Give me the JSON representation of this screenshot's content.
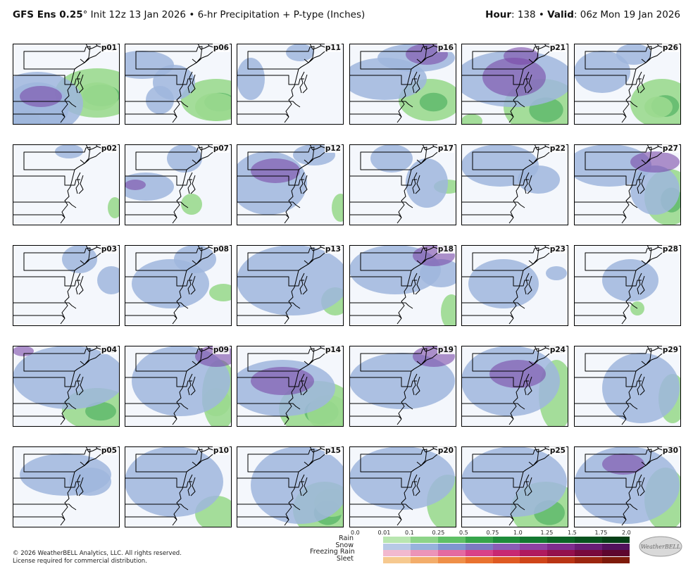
{
  "header": {
    "model": "GFS Ens 0.25",
    "degree": "°",
    "init": "Init 12z 13 Jan 2026",
    "bullet": "•",
    "product": "6-hr Precipitation + P-type (Inches)",
    "hour_label": "Hour",
    "hour_value": ": 138",
    "valid_label": "Valid",
    "valid_value": ": 06z Mon 19 Jan 2026"
  },
  "panels": [
    {
      "label": "p01",
      "blobs": [
        [
          "s",
          -30,
          40,
          130,
          90
        ],
        [
          "s",
          -10,
          55,
          90,
          70
        ],
        [
          "f",
          10,
          60,
          60,
          30
        ],
        [
          "r",
          60,
          35,
          120,
          70
        ],
        [
          "r",
          90,
          55,
          60,
          40
        ],
        [
          "r",
          0,
          95,
          40,
          30
        ]
      ]
    },
    {
      "label": "p06",
      "blobs": [
        [
          "s",
          -20,
          10,
          90,
          40
        ],
        [
          "s",
          40,
          30,
          60,
          50
        ],
        [
          "s",
          30,
          60,
          40,
          40
        ],
        [
          "r",
          80,
          50,
          100,
          60
        ],
        [
          "r",
          100,
          70,
          60,
          40
        ]
      ]
    },
    {
      "label": "p11",
      "blobs": [
        [
          "s",
          0,
          20,
          40,
          60
        ],
        [
          "s",
          70,
          0,
          40,
          25
        ]
      ]
    },
    {
      "label": "p16",
      "blobs": [
        [
          "s",
          -10,
          20,
          120,
          60
        ],
        [
          "s",
          40,
          0,
          110,
          40
        ],
        [
          "f",
          80,
          0,
          60,
          30
        ],
        [
          "r",
          70,
          50,
          90,
          60
        ]
      ]
    },
    {
      "label": "p21",
      "blobs": [
        [
          "s",
          -10,
          10,
          170,
          80
        ],
        [
          "f",
          30,
          20,
          90,
          55
        ],
        [
          "f",
          60,
          5,
          50,
          25
        ],
        [
          "r",
          60,
          50,
          110,
          80
        ],
        [
          "r",
          0,
          100,
          30,
          20
        ]
      ]
    },
    {
      "label": "p26",
      "blobs": [
        [
          "s",
          0,
          10,
          80,
          60
        ],
        [
          "s",
          60,
          0,
          50,
          30
        ],
        [
          "r",
          80,
          50,
          90,
          70
        ],
        [
          "r",
          100,
          75,
          40,
          30
        ]
      ]
    },
    {
      "label": "p02",
      "blobs": [
        [
          "s",
          60,
          0,
          40,
          20
        ],
        [
          "r",
          135,
          75,
          20,
          30
        ]
      ]
    },
    {
      "label": "p07",
      "blobs": [
        [
          "s",
          -10,
          40,
          80,
          40
        ],
        [
          "f",
          0,
          50,
          30,
          15
        ],
        [
          "s",
          60,
          0,
          50,
          40
        ],
        [
          "r",
          80,
          70,
          30,
          30
        ]
      ]
    },
    {
      "label": "p12",
      "blobs": [
        [
          "s",
          -10,
          10,
          110,
          90
        ],
        [
          "f",
          20,
          20,
          70,
          35
        ],
        [
          "s",
          80,
          0,
          60,
          30
        ],
        [
          "r",
          135,
          70,
          25,
          40
        ]
      ]
    },
    {
      "label": "p17",
      "blobs": [
        [
          "s",
          30,
          0,
          60,
          40
        ],
        [
          "s",
          80,
          20,
          60,
          70
        ],
        [
          "r",
          120,
          50,
          40,
          20
        ]
      ]
    },
    {
      "label": "p22",
      "blobs": [
        [
          "s",
          0,
          0,
          110,
          60
        ],
        [
          "s",
          80,
          30,
          60,
          40
        ]
      ]
    },
    {
      "label": "p27",
      "blobs": [
        [
          "s",
          -10,
          0,
          120,
          60
        ],
        [
          "f",
          80,
          10,
          70,
          30
        ],
        [
          "s",
          80,
          30,
          70,
          70
        ],
        [
          "r",
          100,
          35,
          70,
          80
        ]
      ]
    },
    {
      "label": "p03",
      "blobs": [
        [
          "s",
          70,
          0,
          50,
          40
        ],
        [
          "s",
          120,
          30,
          40,
          40
        ]
      ]
    },
    {
      "label": "p08",
      "blobs": [
        [
          "s",
          10,
          20,
          110,
          70
        ],
        [
          "s",
          70,
          0,
          60,
          40
        ],
        [
          "r",
          120,
          55,
          40,
          25
        ]
      ]
    },
    {
      "label": "p13",
      "blobs": [
        [
          "s",
          0,
          0,
          160,
          100
        ],
        [
          "r",
          120,
          60,
          40,
          40
        ]
      ]
    },
    {
      "label": "p18",
      "blobs": [
        [
          "s",
          0,
          0,
          130,
          70
        ],
        [
          "f",
          90,
          0,
          60,
          30
        ],
        [
          "s",
          100,
          20,
          60,
          40
        ],
        [
          "r",
          130,
          70,
          30,
          50
        ]
      ]
    },
    {
      "label": "p23",
      "blobs": [
        [
          "s",
          10,
          20,
          100,
          70
        ],
        [
          "s",
          120,
          30,
          30,
          20
        ]
      ]
    },
    {
      "label": "p28",
      "blobs": [
        [
          "s",
          40,
          20,
          80,
          60
        ],
        [
          "r",
          80,
          80,
          20,
          20
        ]
      ]
    },
    {
      "label": "p04",
      "blobs": [
        [
          "s",
          0,
          0,
          160,
          90
        ],
        [
          "f",
          0,
          0,
          30,
          15
        ],
        [
          "r",
          70,
          60,
          100,
          60
        ]
      ]
    },
    {
      "label": "p09",
      "blobs": [
        [
          "s",
          10,
          0,
          140,
          100
        ],
        [
          "f",
          100,
          0,
          60,
          30
        ],
        [
          "r",
          110,
          20,
          50,
          100
        ],
        [
          "r",
          110,
          60,
          40,
          40
        ]
      ]
    },
    {
      "label": "p14",
      "blobs": [
        [
          "s",
          -10,
          20,
          150,
          80
        ],
        [
          "f",
          20,
          30,
          90,
          40
        ],
        [
          "r",
          60,
          50,
          110,
          80
        ],
        [
          "r",
          100,
          70,
          60,
          50
        ]
      ]
    },
    {
      "label": "p19",
      "blobs": [
        [
          "s",
          0,
          10,
          150,
          80
        ],
        [
          "f",
          90,
          0,
          60,
          30
        ]
      ]
    },
    {
      "label": "p24",
      "blobs": [
        [
          "s",
          0,
          0,
          140,
          100
        ],
        [
          "f",
          40,
          20,
          80,
          40
        ],
        [
          "r",
          110,
          20,
          50,
          100
        ]
      ]
    },
    {
      "label": "p29",
      "blobs": [
        [
          "s",
          40,
          10,
          110,
          100
        ],
        [
          "r",
          120,
          40,
          40,
          70
        ]
      ]
    },
    {
      "label": "p05",
      "blobs": [
        [
          "s",
          10,
          10,
          130,
          60
        ],
        [
          "s",
          80,
          30,
          60,
          40
        ]
      ]
    },
    {
      "label": "p10",
      "blobs": [
        [
          "s",
          0,
          0,
          140,
          100
        ],
        [
          "r",
          100,
          70,
          60,
          50
        ]
      ]
    },
    {
      "label": "p15",
      "blobs": [
        [
          "s",
          20,
          0,
          140,
          110
        ],
        [
          "r",
          80,
          50,
          90,
          80
        ],
        [
          "r",
          110,
          60,
          50,
          40
        ]
      ]
    },
    {
      "label": "p20",
      "blobs": [
        [
          "s",
          0,
          0,
          150,
          90
        ],
        [
          "r",
          110,
          40,
          60,
          80
        ]
      ]
    },
    {
      "label": "p25",
      "blobs": [
        [
          "s",
          0,
          0,
          150,
          100
        ],
        [
          "r",
          70,
          50,
          100,
          80
        ]
      ]
    },
    {
      "label": "p30",
      "blobs": [
        [
          "s",
          0,
          0,
          150,
          110
        ],
        [
          "f",
          40,
          10,
          60,
          30
        ],
        [
          "r",
          100,
          30,
          60,
          90
        ]
      ]
    }
  ],
  "legend": {
    "ticks": [
      "0.0",
      "0.01",
      "0.1",
      "0.25",
      "0.5",
      "0.75",
      "1.0",
      "1.25",
      "1.5",
      "1.75",
      "2.0"
    ],
    "types": [
      "Rain",
      "Snow",
      "Freezing Rain",
      "Sleet"
    ],
    "colors": {
      "Rain": [
        "#b9e6b0",
        "#8dd488",
        "#5fc066",
        "#37a54b",
        "#1e8c3a",
        "#137830",
        "#0c6426",
        "#08521e",
        "#053f16"
      ],
      "Snow": [
        "#b7c9e6",
        "#97b2dc",
        "#7f96d0",
        "#7c7ac2",
        "#8a5db5",
        "#8e41a2",
        "#7f2c8e",
        "#691d76",
        "#52125c"
      ],
      "Freezing Rain": [
        "#f2b9cf",
        "#ec94b8",
        "#e46aa0",
        "#d94188",
        "#c82872",
        "#b01a5e",
        "#94104c",
        "#780a3c",
        "#5e062e"
      ],
      "Sleet": [
        "#f6c98f",
        "#f3ad6a",
        "#ef8f48",
        "#e9722f",
        "#df5a22",
        "#cf4519",
        "#b93414",
        "#9c260f",
        "#7e1a0a"
      ]
    }
  },
  "footer": {
    "copyright": "© 2026 WeatherBELL Analytics, LLC. All rights reserved.",
    "license": "License required for commercial distribution.",
    "logo_text": "WeatherBELL"
  },
  "palette": {
    "snow": "#9fb6dd",
    "snow_dark": "#8a78c4",
    "frz": "#7a4aa8",
    "rain": "#9bd98f",
    "rain_dark": "#3aa653",
    "bg": "#f4f7fc",
    "border": "#000000"
  }
}
